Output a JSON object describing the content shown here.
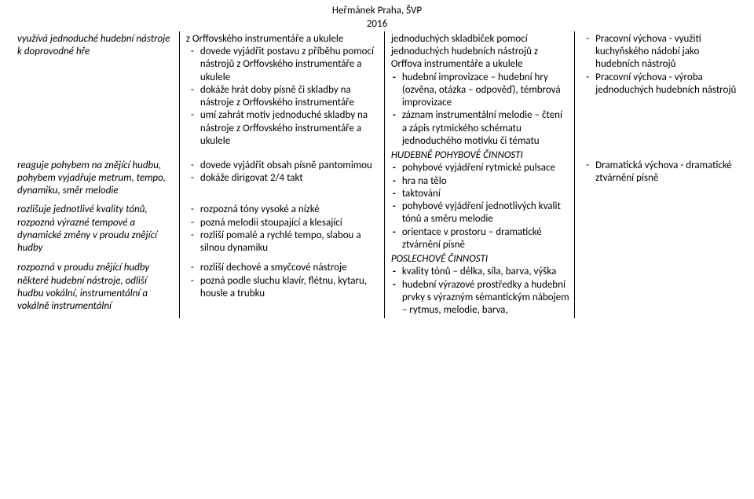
{
  "header": {
    "line1": "Heřmánek Praha, ŠVP",
    "line2": "2016"
  },
  "rows": [
    {
      "c1_html": "<span class=\"italic\">využívá jednoduché hudební nástroje k doprovodné hře</span>",
      "c2_html": "<span class=\"plain\">z Orffovského instrumentáře a ukulele</span><ul class=\"dash\"><li>dovede vyjádřit postavu z příběhu pomocí nástrojů z Orffovského instrumentáře a ukulele</li><li>dokáže hrát doby písně či skladby na nástroje z Orffovského instrumentáře</li><li>umí zahrát motiv jednoduché skladby na nástroje z Orffovského instrumentáře a ukulele</li></ul>",
      "c3_rowspan": 4,
      "c3_html": "<span class=\"plain\">jednoduchých skladbiček pomocí jednoduchých hudebních nástrojů z Orffova instrumentáře a ukulele</span><ul class=\"bold-dash\"><li>hudební improvizace – hudební hry (ozvěna, otázka – odpověď), témbrová improvizace</li><li>záznam instrumentální melodie – čtení a zápis rytmického schématu jednoduchého motivku či tématu</li></ul><div class=\"section-head\">HUDEBNĚ POHYBOVÉ ČINNOSTI</div><ul class=\"bold-dash\"><li>pohybové vyjádření rytmické pulsace</li><li>hra na tělo</li><li>taktování</li><li>pohybové vyjádření jednotlivých kvalit tónů a směru melodie</li><li>orientace v prostoru – dramatické ztvárnění písně</li></ul><div class=\"section-head\">POSLECHOVÉ ČINNOSTI</div><ul class=\"bold-dash\"><li>kvality tónů – délka, síla, barva, výška</li><li>hudební výrazové prostředky a hudební prvky s výrazným sémantickým nábojem – rytmus, melodie, barva,</li></ul>",
      "c4_html": "<ul class=\"dash\"><li>Pracovní výchova - využití kuchyňského nádobí jako hudebních nástrojů</li><li>Pracovní výchova - výroba jednoduchých hudebních nástrojů</li></ul>"
    },
    {
      "c1_html": "<span class=\"italic\">reaguje pohybem na znějící hudbu, pohybem vyjadřuje metrum, tempo, dynamiku, směr melodie</span>",
      "c2_html": "<ul class=\"dash\"><li>dovede vyjádřit obsah písně pantomimou</li><li>dokáže dirigovat 2/4 takt</li></ul>",
      "c4_html": "<ul class=\"dash\"><li>Dramatická výchova - dramatické ztvárnění písně</li></ul>"
    },
    {
      "c1_html": "<span class=\"italic\">rozlišuje jednotlivé kvality tónů, rozpozná výrazné tempové a dynamické změny v proudu znějící hudby</span>",
      "c2_html": "<ul class=\"dash\"><li>rozpozná tóny vysoké a nízké</li><li>pozná melodii stoupající a klesající</li><li>rozliší pomalé a rychlé tempo, slabou a silnou dynamiku</li></ul>",
      "c4_html": ""
    },
    {
      "c1_html": "<span class=\"italic\">rozpozná v proudu znějící hudby některé hudební nástroje, odliší hudbu vokální, instrumentální a vokálně instrumentální</span>",
      "c2_html": "<ul class=\"dash\"><li>rozliší dechové a smyčcové nástroje</li><li>pozná podle sluchu klavír, flétnu, kytaru, housle a trubku</li></ul>",
      "c4_html": ""
    }
  ]
}
